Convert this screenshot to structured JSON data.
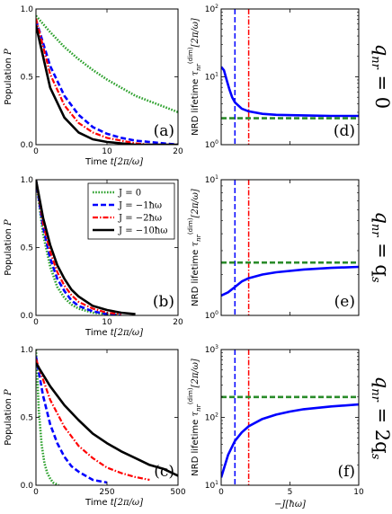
{
  "chart_data": [
    {
      "panel": "(a)",
      "type": "line",
      "xlabel": "Time t[2π/ω]",
      "ylabel": "Population P",
      "xlim": [
        0,
        20
      ],
      "ylim": [
        0,
        1
      ],
      "xticks": [
        "0",
        "10",
        "20"
      ],
      "yticks": [
        "0.0",
        "0.5",
        "1.0"
      ],
      "series": [
        {
          "name": "J = 0",
          "color": "#2ca02c",
          "style": "dotted",
          "x": [
            0,
            2,
            4,
            6,
            8,
            10,
            12,
            14,
            16,
            18,
            20
          ],
          "y": [
            0.95,
            0.83,
            0.72,
            0.63,
            0.55,
            0.48,
            0.42,
            0.36,
            0.32,
            0.28,
            0.24
          ]
        },
        {
          "name": "J = −1ħω",
          "color": "#0000ff",
          "style": "dashed",
          "x": [
            0,
            2,
            4,
            6,
            8,
            10,
            12,
            14,
            16,
            18,
            20
          ],
          "y": [
            0.92,
            0.58,
            0.36,
            0.22,
            0.13,
            0.08,
            0.05,
            0.03,
            0.02,
            0.01,
            0.0
          ]
        },
        {
          "name": "J = −2ħω",
          "color": "#ff0000",
          "style": "dashdot",
          "x": [
            0,
            2,
            4,
            6,
            8,
            10,
            12,
            14,
            16,
            18,
            20
          ],
          "y": [
            0.93,
            0.52,
            0.29,
            0.16,
            0.09,
            0.05,
            0.03,
            0.01,
            0.0,
            0.0,
            0.0
          ]
        },
        {
          "name": "J = −10ħω",
          "color": "#000000",
          "style": "solid",
          "x": [
            0,
            2,
            4,
            6,
            8,
            10,
            12,
            14,
            16,
            18,
            20
          ],
          "y": [
            0.88,
            0.42,
            0.2,
            0.09,
            0.04,
            0.02,
            0.01,
            0.0,
            0.0,
            0.0,
            0.0
          ]
        }
      ]
    },
    {
      "panel": "(b)",
      "type": "line",
      "xlabel": "Time t[2π/ω]",
      "ylabel": "Population P",
      "xlim": [
        0,
        20
      ],
      "ylim": [
        0,
        1
      ],
      "xticks": [
        "0",
        "10",
        "20"
      ],
      "yticks": [
        "0.0",
        "0.5",
        "1.0"
      ],
      "legend": {
        "placement": "top-right",
        "entries": [
          "J = 0",
          "J = −1ħω",
          "J = −2ħω",
          "J = −10ħω"
        ]
      },
      "series": [
        {
          "name": "J = 0",
          "color": "#2ca02c",
          "style": "dotted",
          "x": [
            0,
            1,
            2,
            3,
            4,
            5,
            6,
            8,
            10,
            12
          ],
          "y": [
            1.0,
            0.6,
            0.36,
            0.21,
            0.13,
            0.08,
            0.05,
            0.02,
            0.01,
            0.0
          ]
        },
        {
          "name": "J = −1ħω",
          "color": "#0000ff",
          "style": "dashed",
          "x": [
            0,
            1,
            2,
            3,
            4,
            5,
            6,
            8,
            10,
            12
          ],
          "y": [
            1.0,
            0.65,
            0.42,
            0.27,
            0.18,
            0.11,
            0.07,
            0.03,
            0.01,
            0.0
          ]
        },
        {
          "name": "J = −2ħω",
          "color": "#ff0000",
          "style": "dashdot",
          "x": [
            0,
            1,
            2,
            3,
            4,
            5,
            6,
            8,
            10,
            12
          ],
          "y": [
            1.0,
            0.68,
            0.47,
            0.32,
            0.22,
            0.15,
            0.1,
            0.05,
            0.02,
            0.01
          ]
        },
        {
          "name": "J = −10ħω",
          "color": "#000000",
          "style": "solid",
          "x": [
            0,
            1,
            2,
            3,
            4,
            5,
            6,
            8,
            10,
            12,
            14
          ],
          "y": [
            1.0,
            0.72,
            0.52,
            0.37,
            0.27,
            0.19,
            0.14,
            0.07,
            0.04,
            0.02,
            0.01
          ]
        }
      ]
    },
    {
      "panel": "(c)",
      "type": "line",
      "xlabel": "Time t[2π/ω]",
      "ylabel": "Population P",
      "xlim": [
        0,
        500
      ],
      "ylim": [
        0,
        1
      ],
      "xticks": [
        "0",
        "250",
        "500"
      ],
      "yticks": [
        "0.0",
        "0.5",
        "1.0"
      ],
      "series": [
        {
          "name": "J = 0",
          "color": "#2ca02c",
          "style": "dotted",
          "x": [
            0,
            10,
            20,
            30,
            40,
            50,
            60,
            80
          ],
          "y": [
            1.0,
            0.55,
            0.3,
            0.16,
            0.09,
            0.05,
            0.02,
            0.0
          ]
        },
        {
          "name": "J = −1ħω",
          "color": "#0000ff",
          "style": "dashed",
          "x": [
            0,
            25,
            50,
            75,
            100,
            125,
            150,
            200,
            250
          ],
          "y": [
            0.95,
            0.66,
            0.45,
            0.31,
            0.21,
            0.14,
            0.1,
            0.04,
            0.02
          ]
        },
        {
          "name": "J = −2ħω",
          "color": "#ff0000",
          "style": "dashdot",
          "x": [
            0,
            50,
            100,
            150,
            200,
            250,
            300,
            350,
            400
          ],
          "y": [
            0.93,
            0.63,
            0.43,
            0.29,
            0.2,
            0.13,
            0.09,
            0.06,
            0.04
          ]
        },
        {
          "name": "J = −10ħω",
          "color": "#000000",
          "style": "solid",
          "x": [
            0,
            50,
            100,
            150,
            200,
            250,
            300,
            350,
            400,
            450,
            500
          ],
          "y": [
            0.9,
            0.73,
            0.59,
            0.48,
            0.38,
            0.31,
            0.25,
            0.2,
            0.15,
            0.12,
            0.07
          ]
        }
      ]
    },
    {
      "panel": "(d)",
      "type": "line",
      "ylabel": "NRD lifetime τnr(dim)[2π/ω]",
      "yscale": "log",
      "xlim": [
        0,
        10
      ],
      "ylim": [
        1,
        100
      ],
      "yticks": [
        {
          "v": 1,
          "t": "10",
          "e": "0"
        },
        {
          "v": 10,
          "t": "10",
          "e": "1"
        },
        {
          "v": 100,
          "t": "10",
          "e": "2"
        }
      ],
      "series": [
        {
          "name": "NRD lifetime",
          "color": "#0000ff",
          "style": "solid",
          "x": [
            0,
            0.2,
            0.4,
            0.6,
            0.8,
            1.0,
            1.5,
            2,
            3,
            4,
            6,
            8,
            10
          ],
          "y": [
            14,
            12.5,
            9,
            6.5,
            5,
            4.2,
            3.4,
            3.1,
            2.85,
            2.75,
            2.7,
            2.65,
            2.65
          ]
        },
        {
          "name": "asymptote",
          "color": "#2a8c2a",
          "style": "dashed",
          "x": [
            0,
            10
          ],
          "y": [
            2.45,
            2.45
          ]
        }
      ],
      "vlines": [
        {
          "x": 1,
          "color": "#0000ff",
          "style": "dashed"
        },
        {
          "x": 2,
          "color": "#ff0000",
          "style": "dashdot"
        }
      ]
    },
    {
      "panel": "(e)",
      "type": "line",
      "ylabel": "NRD lifetime τnr(dim)[2π/ω]",
      "yscale": "log",
      "xlim": [
        0,
        10
      ],
      "ylim": [
        1,
        10
      ],
      "yticks": [
        {
          "v": 1,
          "t": "10",
          "e": "0"
        },
        {
          "v": 10,
          "t": "10",
          "e": "1"
        }
      ],
      "series": [
        {
          "name": "NRD lifetime",
          "color": "#0000ff",
          "style": "solid",
          "x": [
            0,
            0.5,
            1,
            1.5,
            2,
            3,
            4,
            6,
            8,
            10
          ],
          "y": [
            1.4,
            1.48,
            1.62,
            1.78,
            1.88,
            2.0,
            2.08,
            2.18,
            2.24,
            2.28
          ]
        },
        {
          "name": "asymptote",
          "color": "#2a8c2a",
          "style": "dashed",
          "x": [
            0,
            10
          ],
          "y": [
            2.45,
            2.45
          ]
        }
      ],
      "vlines": [
        {
          "x": 1,
          "color": "#0000ff",
          "style": "dashed"
        },
        {
          "x": 2,
          "color": "#ff0000",
          "style": "dashdot"
        }
      ]
    },
    {
      "panel": "(f)",
      "type": "line",
      "xlabel": "−J[ħω]",
      "ylabel": "NRD lifetime τnr(dim)[2π/ω]",
      "yscale": "log",
      "xlim": [
        0,
        10
      ],
      "ylim": [
        10,
        1000
      ],
      "xticks": [
        "0",
        "5",
        "10"
      ],
      "yticks": [
        {
          "v": 10,
          "t": "10",
          "e": "1"
        },
        {
          "v": 100,
          "t": "10",
          "e": "2"
        },
        {
          "v": 1000,
          "t": "10",
          "e": "3"
        }
      ],
      "series": [
        {
          "name": "NRD lifetime",
          "color": "#0000ff",
          "style": "solid",
          "x": [
            0,
            0.5,
            1,
            1.5,
            2,
            3,
            4,
            5,
            6,
            8,
            10
          ],
          "y": [
            13,
            28,
            45,
            60,
            74,
            95,
            110,
            122,
            132,
            145,
            155
          ]
        },
        {
          "name": "asymptote",
          "color": "#2a8c2a",
          "style": "dashed",
          "x": [
            0,
            10
          ],
          "y": [
            200,
            200
          ]
        }
      ],
      "vlines": [
        {
          "x": 1,
          "color": "#0000ff",
          "style": "dashed"
        },
        {
          "x": 2,
          "color": "#ff0000",
          "style": "dashdot"
        }
      ]
    }
  ],
  "row_labels": [
    {
      "lhs": "q",
      "sub": "nr",
      "rhs": " = 0"
    },
    {
      "lhs": "q",
      "sub": "nr",
      "rhs": " = q",
      "rsub": "s"
    },
    {
      "lhs": "q",
      "sub": "nr",
      "rhs": " = 2q",
      "rsub": "s"
    }
  ]
}
